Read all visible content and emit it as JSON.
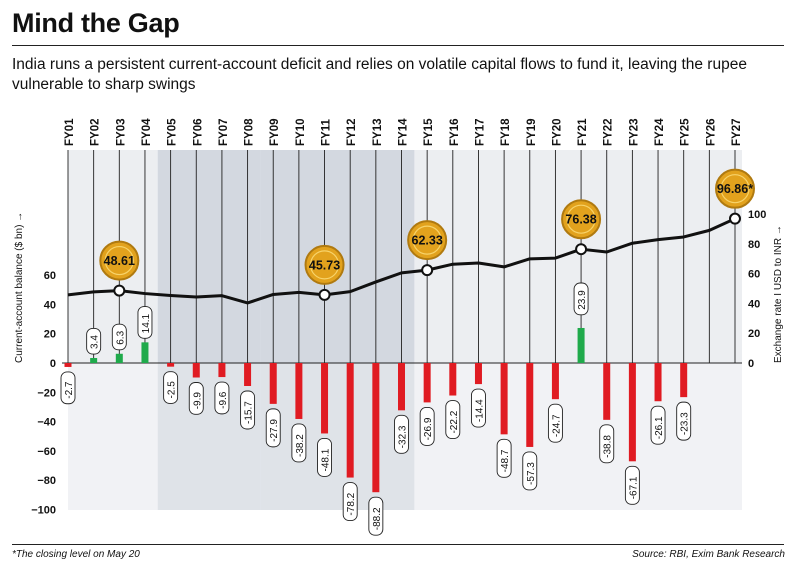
{
  "title": "Mind the Gap",
  "subtitle": "India runs a persistent current-account deficit and relies on volatile capital flows to fund it, leaving the rupee vulnerable to sharp swings",
  "footnote": "*The closing level on May 20",
  "source": "Source: RBI, Exim Bank Research",
  "colors": {
    "positive": "#1faa4b",
    "negative": "#e01b22",
    "line": "#111111",
    "shade": "#d3d8e0",
    "coin": "#e2a21d"
  },
  "chart_data": {
    "type": "bar+line",
    "categories": [
      "FY01",
      "FY02",
      "FY03",
      "FY04",
      "FY05",
      "FY06",
      "FY07",
      "FY08",
      "FY09",
      "FY10",
      "FY11",
      "FY12",
      "FY13",
      "FY14",
      "FY15",
      "FY16",
      "FY17",
      "FY18",
      "FY19",
      "FY20",
      "FY21",
      "FY22",
      "FY23",
      "FY24",
      "FY25",
      "FY26",
      "FY27"
    ],
    "left_axis": {
      "label": "Current-account balance ($ bn)",
      "ylim": [
        -100,
        100
      ],
      "ticks": [
        -100,
        -80,
        -60,
        -40,
        -20,
        0,
        20,
        40,
        60
      ]
    },
    "right_axis": {
      "label": "Exchange rate I USD to INR",
      "ylim": [
        0,
        100
      ],
      "ticks": [
        0,
        20,
        40,
        60,
        80,
        100
      ]
    },
    "bars": {
      "name": "Current-account balance",
      "values": [
        -2.7,
        3.4,
        6.3,
        14.1,
        -2.5,
        -9.9,
        -9.6,
        -15.7,
        -27.9,
        -38.2,
        -48.1,
        -78.2,
        -88.2,
        -32.3,
        -26.9,
        -22.2,
        -14.4,
        -48.7,
        -57.3,
        -24.7,
        23.9,
        -38.8,
        -67.1,
        -26.1,
        -23.3,
        null,
        null
      ],
      "labels": [
        "-2.7",
        "3.4",
        "6.3",
        "14.1",
        "-2.5",
        "-9.9",
        "-9.6",
        "-15.7",
        "-27.9",
        "-38.2",
        "-48.1",
        "-78.2",
        "-88.2",
        "-32.3",
        "-26.9",
        "-22.2",
        "-14.4",
        "-48.7",
        "-57.3",
        "-24.7",
        "23.9",
        "-38.8",
        "-67.1",
        "-26.1",
        "-23.3",
        "",
        ""
      ]
    },
    "line": {
      "name": "Exchange rate",
      "values": [
        45.7,
        47.7,
        48.61,
        46.6,
        45.3,
        44.3,
        45.2,
        40.3,
        46.0,
        47.4,
        45.73,
        47.9,
        54.4,
        60.5,
        62.33,
        66.3,
        67.1,
        64.5,
        69.9,
        70.4,
        76.38,
        74.5,
        80.4,
        82.8,
        84.6,
        89.0,
        96.86
      ]
    },
    "callouts": [
      {
        "index": 2,
        "label": "48.61"
      },
      {
        "index": 10,
        "label": "45.73"
      },
      {
        "index": 14,
        "label": "62.33"
      },
      {
        "index": 20,
        "label": "76.38"
      },
      {
        "index": 26,
        "label": "96.86*"
      }
    ],
    "shaded_ranges": [
      [
        4,
        7
      ],
      [
        8,
        13
      ]
    ],
    "grid": false
  }
}
